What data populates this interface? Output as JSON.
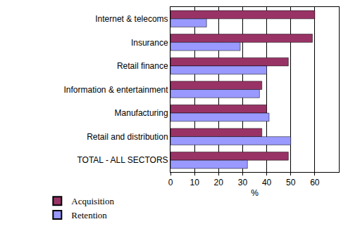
{
  "chart_data": {
    "type": "bar",
    "orientation": "horizontal",
    "categories": [
      "Internet & telecoms",
      "Insurance",
      "Retail finance",
      "Information & entertainment",
      "Manufacturing",
      "Retail and distribution",
      "TOTAL - ALL SECTORS"
    ],
    "series": [
      {
        "name": "Acquisition",
        "color": "#993366",
        "values": [
          60,
          59,
          49,
          38,
          40,
          38,
          49
        ]
      },
      {
        "name": "Retention",
        "color": "#9999ff",
        "values": [
          15,
          29,
          40,
          37,
          41,
          50,
          32
        ]
      }
    ],
    "x_label": "%",
    "xlim": [
      0,
      70
    ],
    "xticks": [
      0,
      10,
      20,
      30,
      40,
      50,
      60
    ],
    "grid": true,
    "legend": "bottom-left"
  }
}
